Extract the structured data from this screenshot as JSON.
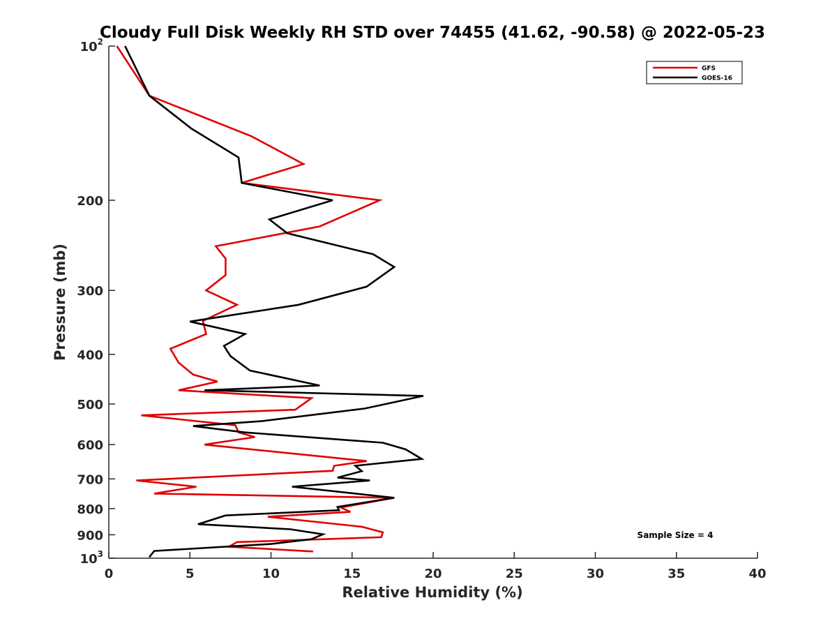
{
  "chart_data": {
    "type": "line",
    "title": "Cloudy Full Disk Weekly RH STD over 74455 (41.62, -90.58) @ 2022-05-23",
    "xlabel": "Relative Humidity (%)",
    "ylabel": "Pressure (mb)",
    "xlim": [
      0,
      40
    ],
    "ylim": [
      100,
      1000
    ],
    "y_scale": "log",
    "y_reversed": false,
    "x_ticks": [
      {
        "value": 0,
        "label": "0"
      },
      {
        "value": 5,
        "label": "5"
      },
      {
        "value": 10,
        "label": "10"
      },
      {
        "value": 15,
        "label": "15"
      },
      {
        "value": 20,
        "label": "20"
      },
      {
        "value": 25,
        "label": "25"
      },
      {
        "value": 30,
        "label": "30"
      },
      {
        "value": 35,
        "label": "35"
      },
      {
        "value": 40,
        "label": "40"
      }
    ],
    "y_ticks": [
      {
        "value": 100,
        "base": "10",
        "exp": "2"
      },
      {
        "value": 200,
        "label": "200"
      },
      {
        "value": 300,
        "label": "300"
      },
      {
        "value": 400,
        "label": "400"
      },
      {
        "value": 500,
        "label": "500"
      },
      {
        "value": 600,
        "label": "600"
      },
      {
        "value": 700,
        "label": "700"
      },
      {
        "value": 800,
        "label": "800"
      },
      {
        "value": 900,
        "label": "900"
      },
      {
        "value": 1000,
        "base": "10",
        "exp": "3"
      }
    ],
    "legend": {
      "position": "top-right"
    },
    "annotation": "Sample Size = 4",
    "grid": false,
    "series": [
      {
        "name": "GFS",
        "color": "#e00000",
        "points": [
          [
            0.5,
            100
          ],
          [
            2.5,
            125
          ],
          [
            8.8,
            150
          ],
          [
            12.0,
            170
          ],
          [
            8.2,
            185
          ],
          [
            16.7,
            200
          ],
          [
            13.0,
            225
          ],
          [
            6.6,
            246
          ],
          [
            7.2,
            260
          ],
          [
            7.2,
            280
          ],
          [
            6.0,
            300
          ],
          [
            7.9,
            320
          ],
          [
            5.8,
            344
          ],
          [
            6.0,
            365
          ],
          [
            3.8,
            390
          ],
          [
            4.3,
            415
          ],
          [
            5.2,
            438
          ],
          [
            6.7,
            452
          ],
          [
            4.3,
            470
          ],
          [
            12.5,
            487
          ],
          [
            11.5,
            513
          ],
          [
            2.0,
            526
          ],
          [
            7.8,
            550
          ],
          [
            8.0,
            568
          ],
          [
            9.0,
            580
          ],
          [
            5.9,
            600
          ],
          [
            15.9,
            646
          ],
          [
            13.9,
            660
          ],
          [
            13.8,
            675
          ],
          [
            1.7,
            705
          ],
          [
            5.4,
            725
          ],
          [
            2.8,
            748
          ],
          [
            17.6,
            762
          ],
          [
            14.3,
            796
          ],
          [
            14.9,
            812
          ],
          [
            9.8,
            830
          ],
          [
            15.6,
            868
          ],
          [
            16.9,
            890
          ],
          [
            16.8,
            910
          ],
          [
            7.9,
            930
          ],
          [
            7.4,
            950
          ],
          [
            12.6,
            970
          ]
        ]
      },
      {
        "name": "GOES-16",
        "color": "#000000",
        "points": [
          [
            1.0,
            100
          ],
          [
            2.5,
            125
          ],
          [
            5.1,
            145
          ],
          [
            8.0,
            165
          ],
          [
            8.2,
            185
          ],
          [
            13.8,
            200
          ],
          [
            9.9,
            218
          ],
          [
            11.0,
            232
          ],
          [
            16.3,
            255
          ],
          [
            17.6,
            270
          ],
          [
            15.9,
            295
          ],
          [
            11.7,
            320
          ],
          [
            5.0,
            345
          ],
          [
            8.4,
            365
          ],
          [
            7.1,
            385
          ],
          [
            7.5,
            403
          ],
          [
            8.7,
            430
          ],
          [
            13.0,
            460
          ],
          [
            5.9,
            470
          ],
          [
            19.4,
            482
          ],
          [
            15.8,
            510
          ],
          [
            9.4,
            540
          ],
          [
            5.2,
            552
          ],
          [
            8.4,
            568
          ],
          [
            16.9,
            595
          ],
          [
            18.3,
            613
          ],
          [
            19.3,
            640
          ],
          [
            15.2,
            660
          ],
          [
            15.6,
            676
          ],
          [
            14.1,
            696
          ],
          [
            16.1,
            705
          ],
          [
            11.3,
            725
          ],
          [
            17.6,
            762
          ],
          [
            14.1,
            794
          ],
          [
            14.2,
            806
          ],
          [
            7.2,
            825
          ],
          [
            5.5,
            858
          ],
          [
            11.2,
            878
          ],
          [
            13.2,
            898
          ],
          [
            12.5,
            918
          ],
          [
            10.0,
            938
          ],
          [
            2.8,
            968
          ],
          [
            2.5,
            995
          ]
        ]
      }
    ]
  }
}
